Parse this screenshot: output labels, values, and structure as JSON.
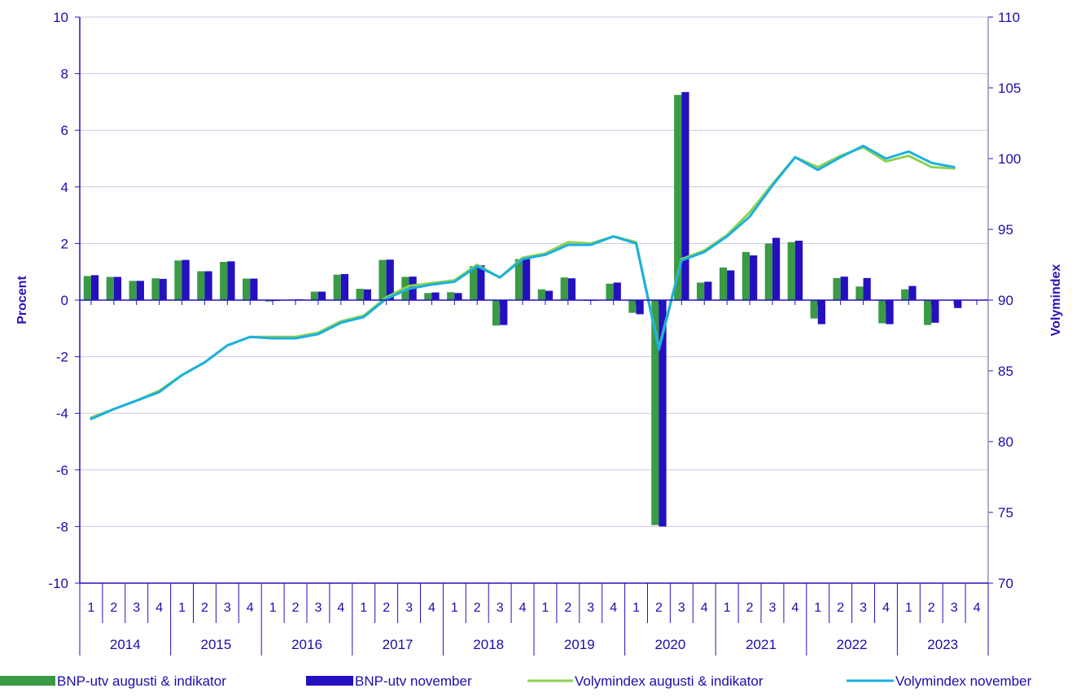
{
  "chart_data": {
    "type": "bar",
    "ylabel_left": "Procent",
    "ylabel_right": "Volymindex",
    "ylim_left": [
      -10,
      10
    ],
    "ylim_right": [
      70,
      110
    ],
    "yticks_left": [
      "10",
      "8",
      "6",
      "4",
      "2",
      "0",
      "-2",
      "-4",
      "-6",
      "-8",
      "-10"
    ],
    "yticks_right": [
      "110",
      "105",
      "100",
      "95",
      "90",
      "85",
      "80",
      "75",
      "70"
    ],
    "years": [
      "2014",
      "2015",
      "2016",
      "2017",
      "2018",
      "2019",
      "2020",
      "2021",
      "2022",
      "2023"
    ],
    "quarter_labels": [
      "1",
      "2",
      "3",
      "4"
    ],
    "grid": true,
    "legend_position": "bottom",
    "colors": {
      "bar_august": "#3a9a45",
      "bar_november": "#2410c0",
      "line_august": "#8fd14f",
      "line_november": "#1ab0e0",
      "axis": "#2410c0",
      "grid": "#c9c9e6"
    },
    "series": [
      {
        "name": "BNP-utv augusti & indikator",
        "kind": "bar",
        "axis": "left",
        "values": [
          0.85,
          0.82,
          0.68,
          0.77,
          1.4,
          1.02,
          1.35,
          0.76,
          -0.05,
          0.02,
          0.3,
          0.9,
          0.4,
          1.42,
          0.82,
          0.25,
          0.28,
          1.2,
          -0.9,
          1.45,
          0.38,
          0.8,
          -0.03,
          0.58,
          -0.45,
          -7.95,
          7.25,
          0.62,
          1.15,
          1.7,
          2.0,
          2.05,
          -0.65,
          0.78,
          0.48,
          -0.82,
          0.38,
          -0.88,
          null,
          null
        ]
      },
      {
        "name": "BNP-utv november",
        "kind": "bar",
        "axis": "left",
        "values": [
          0.88,
          0.82,
          0.68,
          0.75,
          1.42,
          1.02,
          1.37,
          0.76,
          -0.03,
          0.03,
          0.3,
          0.92,
          0.38,
          1.43,
          0.83,
          0.27,
          0.25,
          1.23,
          -0.88,
          1.45,
          0.33,
          0.77,
          -0.02,
          0.62,
          -0.5,
          -8.0,
          7.35,
          0.65,
          1.05,
          1.58,
          2.2,
          2.1,
          -0.85,
          0.83,
          0.78,
          -0.85,
          0.5,
          -0.8,
          -0.28,
          null
        ]
      },
      {
        "name": "Volymindex augusti & indikator",
        "kind": "line",
        "axis": "right",
        "values": [
          81.7,
          82.3,
          82.9,
          83.6,
          84.7,
          85.6,
          86.8,
          87.4,
          87.4,
          87.4,
          87.7,
          88.5,
          88.9,
          90.2,
          91.0,
          91.2,
          91.4,
          92.5,
          91.6,
          93.0,
          93.3,
          94.1,
          94.0,
          94.5,
          94.1,
          86.6,
          92.9,
          93.5,
          94.6,
          96.2,
          98.2,
          100.1,
          99.4,
          100.2,
          100.8,
          99.8,
          100.2,
          99.4,
          99.3,
          null
        ]
      },
      {
        "name": "Volymindex november",
        "kind": "line",
        "axis": "right",
        "values": [
          81.6,
          82.3,
          82.9,
          83.5,
          84.7,
          85.6,
          86.8,
          87.4,
          87.3,
          87.3,
          87.6,
          88.4,
          88.8,
          90.1,
          90.8,
          91.1,
          91.3,
          92.4,
          91.6,
          92.9,
          93.2,
          93.9,
          93.9,
          94.5,
          94.0,
          86.5,
          92.8,
          93.4,
          94.5,
          95.9,
          98.1,
          100.1,
          99.2,
          100.1,
          100.9,
          100.0,
          100.5,
          99.7,
          99.4,
          null
        ]
      }
    ]
  }
}
